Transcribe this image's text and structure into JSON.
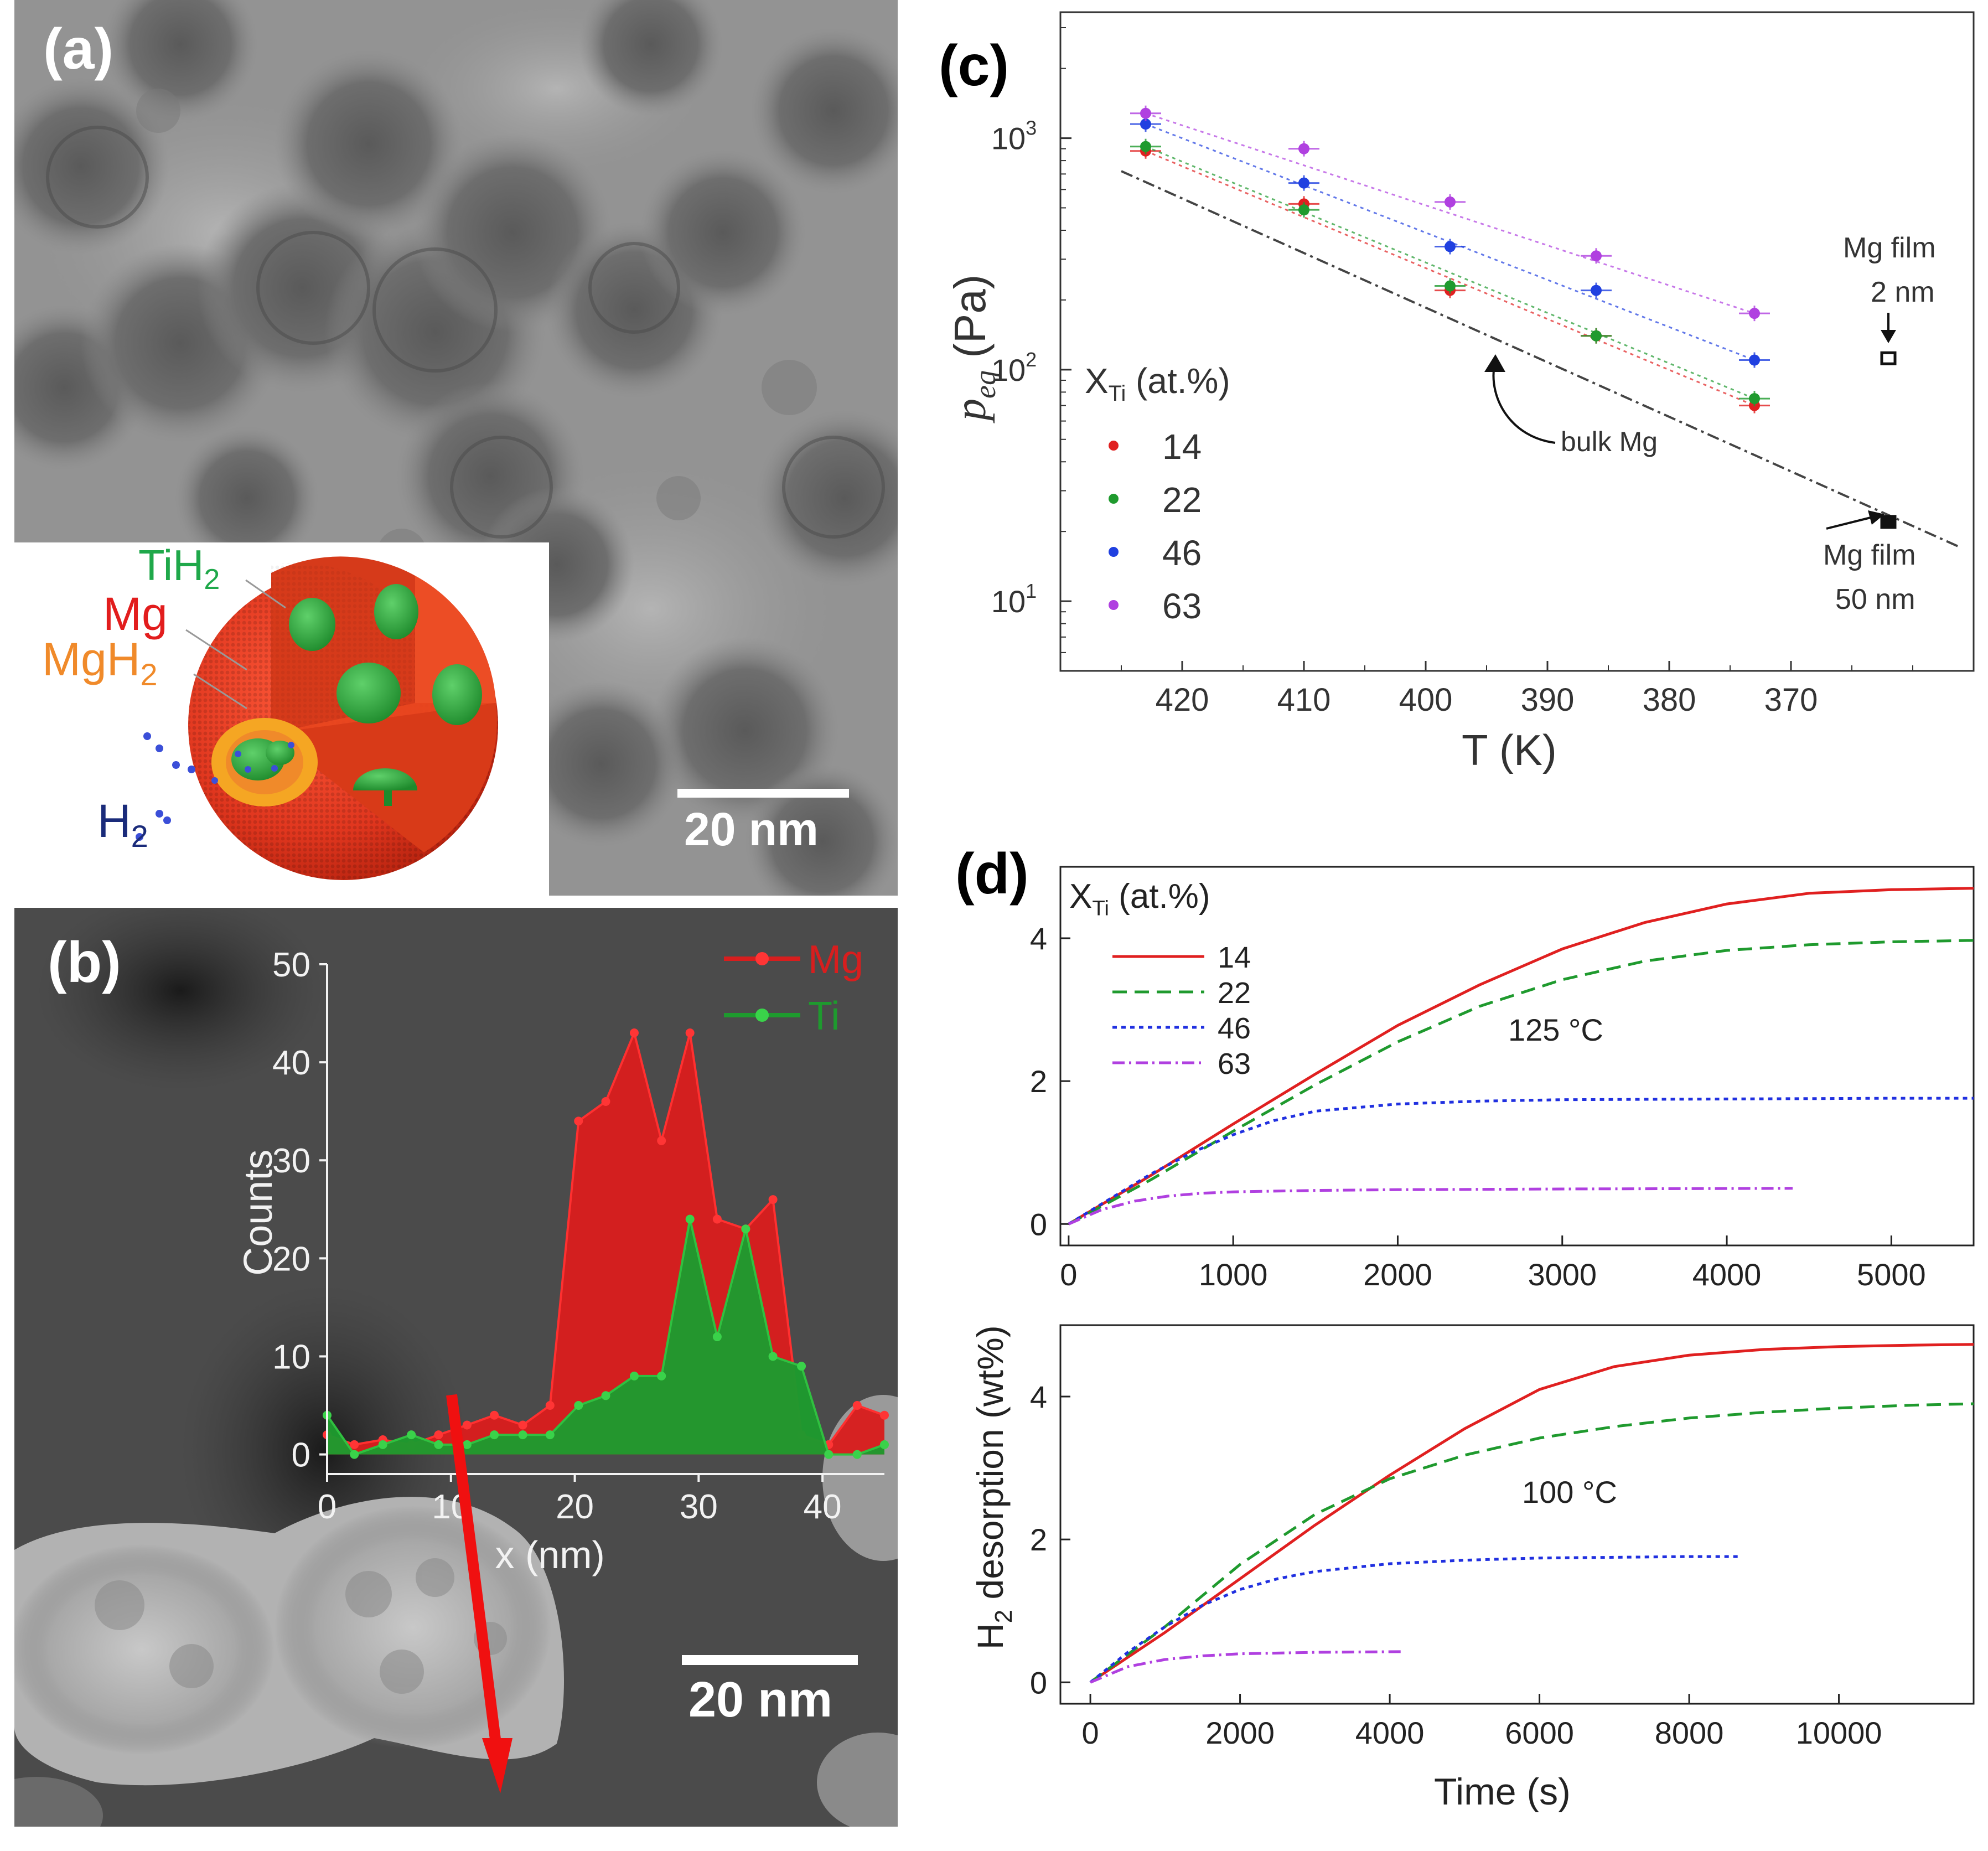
{
  "figure": {
    "panels": {
      "a": {
        "label": "(a)",
        "scale_bar": "20 nm",
        "inset": {
          "labels": [
            {
              "text": "TiH",
              "sub": "2",
              "color": "#1fa84a"
            },
            {
              "text": "Mg",
              "sub": "",
              "color": "#e21d1d"
            },
            {
              "text": "MgH",
              "sub": "2",
              "color": "#f08a2a"
            },
            {
              "text": "H",
              "sub": "2",
              "color": "#1a2b7a"
            }
          ]
        }
      },
      "b": {
        "label": "(b)",
        "scale_bar": "20 nm",
        "legend": [
          {
            "name": "Mg",
            "color": "#d81e1e"
          },
          {
            "name": "Ti",
            "color": "#1e9a2e"
          }
        ]
      },
      "c": {
        "label": "(c)"
      },
      "d": {
        "label": "(d)"
      }
    }
  },
  "chart_data": [
    {
      "id": "b-linescan",
      "type": "area",
      "xlabel": "x (nm)",
      "ylabel": "Counts",
      "xlim": [
        0,
        45
      ],
      "ylim": [
        -2,
        50
      ],
      "xticks": [
        0,
        10,
        20,
        30,
        40
      ],
      "yticks": [
        0,
        10,
        20,
        30,
        40,
        50
      ],
      "series": [
        {
          "name": "Mg",
          "color": "#d81e1e",
          "x": [
            0,
            2.2,
            4.5,
            6.8,
            9,
            11.3,
            13.5,
            15.8,
            18,
            20.3,
            22.5,
            24.8,
            27,
            29.3,
            31.5,
            33.8,
            36,
            38.3,
            40.5,
            42.8,
            45
          ],
          "y": [
            2,
            1,
            1.5,
            1,
            2,
            3,
            4,
            3,
            5,
            34,
            36,
            43,
            32,
            43,
            24,
            23,
            26,
            2,
            1,
            5,
            4
          ]
        },
        {
          "name": "Ti",
          "color": "#1e9a2e",
          "x": [
            0,
            2.2,
            4.5,
            6.8,
            9,
            11.3,
            13.5,
            15.8,
            18,
            20.3,
            22.5,
            24.8,
            27,
            29.3,
            31.5,
            33.8,
            36,
            38.3,
            40.5,
            42.8,
            45
          ],
          "y": [
            4,
            0,
            1,
            2,
            1,
            1,
            2,
            2,
            2,
            5,
            6,
            8,
            8,
            24,
            12,
            23,
            10,
            9,
            0,
            0,
            1
          ]
        }
      ]
    },
    {
      "id": "c-peq",
      "type": "scatter",
      "xlabel": "T (K)",
      "ylabel": "p",
      "ylabel_sub": "eq",
      "ylabel_unit": " (Pa)",
      "yscale": "log",
      "xlim": [
        430,
        355
      ],
      "ylim": [
        5,
        3500
      ],
      "xticks": [
        420,
        410,
        400,
        390,
        380,
        370
      ],
      "yticks": [
        {
          "base": "10",
          "exp": "1",
          "value": 10
        },
        {
          "base": "10",
          "exp": "2",
          "value": 100
        },
        {
          "base": "10",
          "exp": "3",
          "value": 1000
        }
      ],
      "legend_title": "X",
      "legend_title_sub": "Ti",
      "legend_title_rest": " (at.%)",
      "series": [
        {
          "name": "14",
          "color": "#e02020",
          "x": [
            423,
            410,
            398,
            386,
            373
          ],
          "y": [
            880,
            520,
            220,
            140,
            70
          ]
        },
        {
          "name": "22",
          "color": "#1f9a2e",
          "x": [
            423,
            410,
            398,
            386,
            373
          ],
          "y": [
            920,
            490,
            230,
            140,
            75
          ]
        },
        {
          "name": "46",
          "color": "#2040e0",
          "x": [
            423,
            410,
            398,
            386,
            373
          ],
          "y": [
            1150,
            640,
            340,
            220,
            110
          ]
        },
        {
          "name": "63",
          "color": "#b040e0",
          "x": [
            423,
            410,
            398,
            386,
            373
          ],
          "y": [
            1280,
            900,
            530,
            310,
            175
          ]
        }
      ],
      "bulk_line": {
        "x": [
          425,
          356
        ],
        "y": [
          720,
          17
        ]
      },
      "film_points": [
        {
          "x": 362,
          "y": 112,
          "open": true
        },
        {
          "x": 362,
          "y": 22,
          "open": false
        }
      ],
      "annotations": [
        {
          "text": "bulk Mg"
        },
        {
          "text": "Mg film",
          "text2": "2 nm"
        },
        {
          "text": "Mg film",
          "text2": "50 nm"
        }
      ]
    },
    {
      "id": "d-125C",
      "type": "line",
      "xlabel": "",
      "ylabel": "H",
      "ylabel_sub": "2",
      "ylabel_rest": " desorption (wt%)",
      "xlim": [
        -50,
        5500
      ],
      "ylim": [
        -0.3,
        5
      ],
      "xticks": [
        0,
        1000,
        2000,
        3000,
        4000,
        5000
      ],
      "yticks": [
        0,
        2,
        4
      ],
      "annotation": "125 °C",
      "legend_title": "X",
      "legend_title_sub": "Ti",
      "legend_title_rest": " (at.%)",
      "series": [
        {
          "name": "14",
          "color": "#e02020",
          "dash": "",
          "x": [
            0,
            500,
            1000,
            1500,
            2000,
            2500,
            3000,
            3500,
            4000,
            4500,
            5000,
            5500
          ],
          "y": [
            0,
            0.68,
            1.4,
            2.1,
            2.78,
            3.35,
            3.85,
            4.22,
            4.48,
            4.63,
            4.68,
            4.7
          ]
        },
        {
          "name": "22",
          "color": "#1f9a2e",
          "dash": "26,14",
          "x": [
            0,
            500,
            1000,
            1500,
            2000,
            2500,
            3000,
            3500,
            4000,
            4500,
            5000,
            5500
          ],
          "y": [
            0,
            0.62,
            1.3,
            1.95,
            2.55,
            3.05,
            3.42,
            3.68,
            3.83,
            3.91,
            3.95,
            3.97
          ]
        },
        {
          "name": "46",
          "color": "#2030e0",
          "dash": "8,8",
          "x": [
            0,
            250,
            500,
            750,
            1000,
            1250,
            1500,
            2000,
            2500,
            3000,
            4000,
            5000,
            5500
          ],
          "y": [
            0,
            0.35,
            0.7,
            1.0,
            1.25,
            1.45,
            1.58,
            1.68,
            1.72,
            1.74,
            1.75,
            1.76,
            1.76
          ]
        },
        {
          "name": "63",
          "color": "#b040e0",
          "dash": "22,8,4,8",
          "x": [
            0,
            200,
            400,
            600,
            800,
            1000,
            1500,
            2000,
            3000,
            4400
          ],
          "y": [
            0,
            0.2,
            0.32,
            0.39,
            0.43,
            0.45,
            0.47,
            0.48,
            0.49,
            0.5
          ]
        }
      ]
    },
    {
      "id": "d-100C",
      "type": "line",
      "xlabel": "Time (s)",
      "xlim": [
        -400,
        11800
      ],
      "ylim": [
        -0.3,
        5
      ],
      "xticks": [
        0,
        2000,
        4000,
        6000,
        8000,
        10000
      ],
      "yticks": [
        0,
        2,
        4
      ],
      "annotation": "100 °C",
      "series": [
        {
          "name": "14",
          "color": "#e02020",
          "dash": "",
          "x": [
            0,
            1000,
            2000,
            3000,
            4000,
            5000,
            6000,
            7000,
            8000,
            9000,
            10000,
            11000,
            11800
          ],
          "y": [
            0,
            0.7,
            1.45,
            2.2,
            2.9,
            3.55,
            4.1,
            4.42,
            4.58,
            4.66,
            4.7,
            4.72,
            4.73
          ]
        },
        {
          "name": "22",
          "color": "#1f9a2e",
          "dash": "26,14",
          "x": [
            0,
            1000,
            2000,
            3000,
            4000,
            5000,
            6000,
            7000,
            8000,
            9000,
            10000,
            11000,
            11800
          ],
          "y": [
            0,
            0.78,
            1.65,
            2.35,
            2.85,
            3.18,
            3.42,
            3.58,
            3.7,
            3.78,
            3.84,
            3.88,
            3.9
          ]
        },
        {
          "name": "46",
          "color": "#2030e0",
          "dash": "8,8",
          "x": [
            0,
            500,
            1000,
            1500,
            2000,
            2500,
            3000,
            4000,
            5000,
            6000,
            7000,
            8000,
            8700
          ],
          "y": [
            0,
            0.42,
            0.78,
            1.08,
            1.3,
            1.45,
            1.55,
            1.66,
            1.71,
            1.74,
            1.75,
            1.76,
            1.76
          ]
        },
        {
          "name": "63",
          "color": "#b040e0",
          "dash": "22,8,4,8",
          "x": [
            0,
            500,
            1000,
            1500,
            2000,
            3000,
            4200
          ],
          "y": [
            0,
            0.22,
            0.32,
            0.37,
            0.4,
            0.42,
            0.43
          ]
        }
      ]
    }
  ]
}
